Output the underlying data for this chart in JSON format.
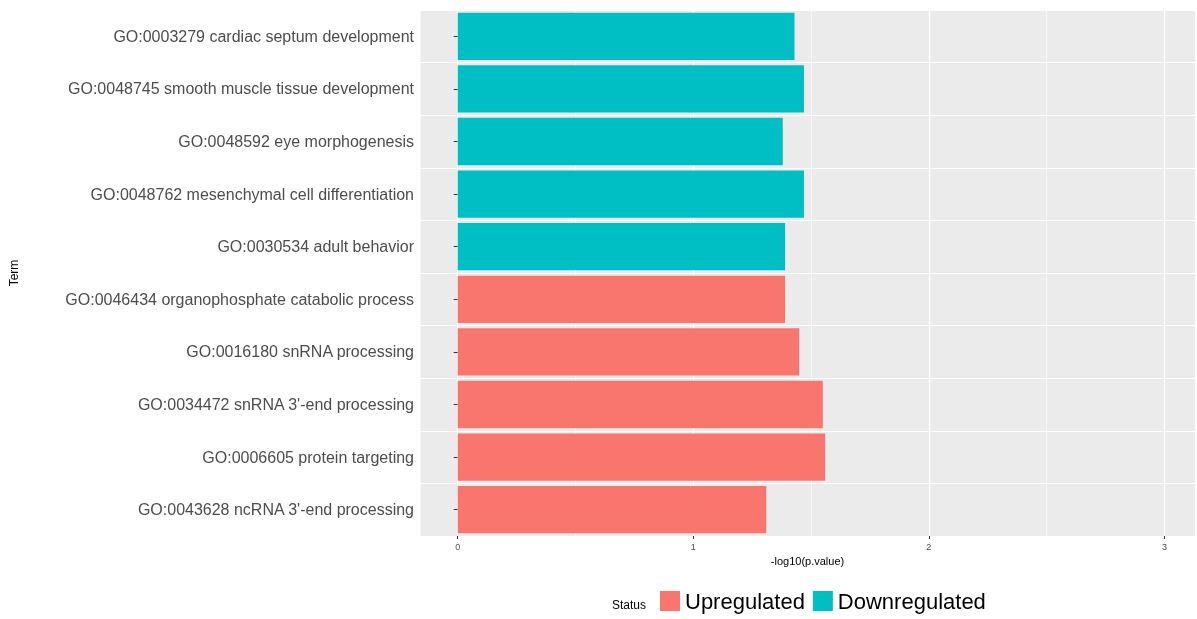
{
  "chart_data": {
    "type": "bar",
    "orientation": "horizontal",
    "stacked": true,
    "xlabel": "-log10(p.value)",
    "ylabel": "Term",
    "legend_title": "Status",
    "categories": [
      "GO:0003279 cardiac septum development",
      "GO:0048745 smooth muscle tissue development",
      "GO:0048592 eye morphogenesis",
      "GO:0048762 mesenchymal cell differentiation",
      "GO:0030534 adult behavior",
      "GO:0046434 organophosphate catabolic process",
      "GO:0016180 snRNA processing",
      "GO:0034472 snRNA 3'-end processing",
      "GO:0006605 protein targeting",
      "GO:0043628 ncRNA 3'-end processing"
    ],
    "series": [
      {
        "name": "Upregulated",
        "color": "#f8766d",
        "values": [
          null,
          null,
          null,
          null,
          null,
          1.39,
          1.45,
          1.55,
          1.56,
          1.31
        ]
      },
      {
        "name": "Downregulated",
        "color": "#00bfc4",
        "values": [
          1.43,
          1.47,
          1.38,
          1.47,
          1.39,
          null,
          null,
          null,
          null,
          null
        ]
      }
    ],
    "xlim": [
      -0.16,
      3.13
    ],
    "xticks": [
      0,
      1,
      2,
      3
    ],
    "grid": true,
    "legend": "bottom"
  }
}
